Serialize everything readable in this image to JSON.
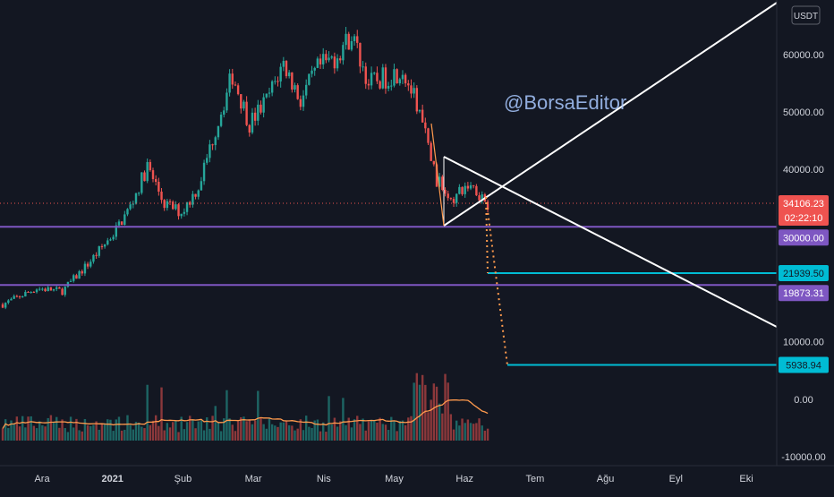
{
  "watermark": "@BorsaEditor",
  "unit_label": "USDT",
  "colors": {
    "background": "#131722",
    "up": "#26a69a",
    "down": "#ef5350",
    "purple": "#7e57c2",
    "cyan": "#00bcd4",
    "trendline": "#ffffff",
    "projection": "#ff9a4d",
    "volume_ma": "#ff9a4d",
    "price_line": "#ef5350"
  },
  "chart_data": {
    "type": "candlestick",
    "title": "",
    "x_ticks": [
      {
        "label": "Ara",
        "bold": false
      },
      {
        "label": "2021",
        "bold": true
      },
      {
        "label": "Şub",
        "bold": false
      },
      {
        "label": "Mar",
        "bold": false
      },
      {
        "label": "Nis",
        "bold": false
      },
      {
        "label": "May",
        "bold": false
      },
      {
        "label": "Haz",
        "bold": false
      },
      {
        "label": "Tem",
        "bold": false
      },
      {
        "label": "Ağu",
        "bold": false
      },
      {
        "label": "Eyl",
        "bold": false
      },
      {
        "label": "Eki",
        "bold": false
      }
    ],
    "price_ticks": [
      "60000.00",
      "50000.00",
      "40000.00",
      "10000.00"
    ],
    "volume_ticks": [
      "0.00",
      "-10000.00"
    ],
    "price_range": [
      -10000,
      68000
    ],
    "price_anchors": [
      {
        "t": 0,
        "p": 16500
      },
      {
        "t": 4,
        "p": 19300
      },
      {
        "t": 7,
        "p": 18800
      },
      {
        "t": 10,
        "p": 23500
      },
      {
        "t": 13,
        "p": 28800
      },
      {
        "t": 15,
        "p": 33500
      },
      {
        "t": 17,
        "p": 40500
      },
      {
        "t": 19,
        "p": 34000
      },
      {
        "t": 21,
        "p": 32500
      },
      {
        "t": 23,
        "p": 37000
      },
      {
        "t": 25,
        "p": 47000
      },
      {
        "t": 27,
        "p": 56500
      },
      {
        "t": 29,
        "p": 48000
      },
      {
        "t": 31,
        "p": 52000
      },
      {
        "t": 33,
        "p": 58500
      },
      {
        "t": 35,
        "p": 52000
      },
      {
        "t": 37,
        "p": 57500
      },
      {
        "t": 39,
        "p": 59500
      },
      {
        "t": 41,
        "p": 63500
      },
      {
        "t": 43,
        "p": 55000
      },
      {
        "t": 45,
        "p": 56000
      },
      {
        "t": 47,
        "p": 57500
      },
      {
        "t": 49,
        "p": 50000
      },
      {
        "t": 51,
        "p": 38000
      },
      {
        "t": 53,
        "p": 35000
      },
      {
        "t": 55,
        "p": 37500
      },
      {
        "t": 57,
        "p": 34106
      }
    ],
    "levels": [
      {
        "name": "support-30000",
        "value": 30000,
        "label": "30000.00",
        "color": "purple"
      },
      {
        "name": "support-19873",
        "value": 19873.31,
        "label": "19873.31",
        "color": "purple"
      },
      {
        "name": "target-21939",
        "value": 21939.5,
        "label": "21939.50",
        "color": "cyan"
      },
      {
        "name": "target-5938",
        "value": 5938.94,
        "label": "5938.94",
        "color": "cyan"
      }
    ],
    "last_price": {
      "value": 34106.23,
      "label": "34106.23",
      "countdown": "02:22:10"
    },
    "grid": false,
    "legend": "none"
  }
}
